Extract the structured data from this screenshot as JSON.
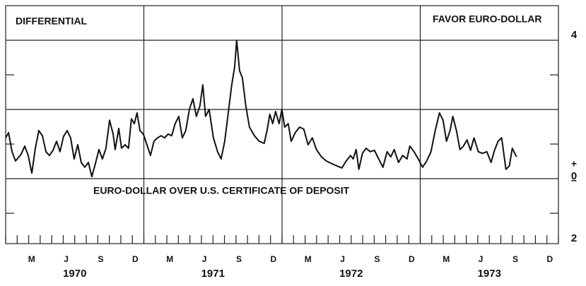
{
  "chart_data": {
    "type": "line",
    "title": "DIFFERENTIAL",
    "annotations": [
      "FAVOR EURO-DOLLAR",
      "EURO-DOLLAR OVER U.S. CERTIFICATE OF DEPOSIT"
    ],
    "zero_signs": [
      "+",
      "−"
    ],
    "xlim": [
      0,
      48
    ],
    "xticks": [
      0,
      1,
      2,
      3,
      4,
      5,
      6,
      7,
      8,
      9,
      10,
      11,
      12,
      13,
      14,
      15,
      16,
      17,
      18,
      19,
      20,
      21,
      22,
      23,
      24,
      25,
      26,
      27,
      28,
      29,
      30,
      31,
      32,
      33,
      34,
      35,
      36,
      37,
      38,
      39,
      40,
      41,
      42,
      43,
      44,
      45,
      46,
      47,
      48
    ],
    "month_labels": [
      {
        "value": 2.5,
        "label": "M"
      },
      {
        "value": 5.5,
        "label": "J"
      },
      {
        "value": 8.5,
        "label": "S"
      },
      {
        "value": 11.5,
        "label": "D"
      },
      {
        "value": 14.5,
        "label": "M"
      },
      {
        "value": 17.5,
        "label": "J"
      },
      {
        "value": 20.5,
        "label": "S"
      },
      {
        "value": 23.5,
        "label": "D"
      },
      {
        "value": 26.5,
        "label": "M"
      },
      {
        "value": 29.5,
        "label": "J"
      },
      {
        "value": 32.5,
        "label": "S"
      },
      {
        "value": 35.5,
        "label": "D"
      },
      {
        "value": 38.5,
        "label": "M"
      },
      {
        "value": 41.5,
        "label": "J"
      },
      {
        "value": 44.5,
        "label": "S"
      },
      {
        "value": 47.5,
        "label": "D"
      }
    ],
    "year_labels": [
      {
        "value": 6,
        "label": "1970"
      },
      {
        "value": 18,
        "label": "1971"
      },
      {
        "value": 30,
        "label": "1972"
      },
      {
        "value": 42,
        "label": "1973"
      }
    ],
    "vertical_grid": [
      12,
      24,
      36
    ],
    "ylim": [
      -2,
      5
    ],
    "yticks": [
      4,
      0,
      {
        "value": -2,
        "label": "2"
      }
    ],
    "grid_values": [
      4,
      2,
      0
    ],
    "minor_yticks": [
      3,
      1,
      -1
    ],
    "grid": true,
    "series": [
      {
        "color": "#111111",
        "x": [
          0,
          0.25,
          0.55,
          0.86,
          1.35,
          1.66,
          1.96,
          2.27,
          2.58,
          2.88,
          3.19,
          3.5,
          3.8,
          4.11,
          4.42,
          4.72,
          5.03,
          5.34,
          5.64,
          5.95,
          6.26,
          6.56,
          6.87,
          7.18,
          7.48,
          7.79,
          8.1,
          8.4,
          8.71,
          9.02,
          9.33,
          9.51,
          9.82,
          10.06,
          10.37,
          10.67,
          10.92,
          11.17,
          11.41,
          11.66,
          11.96,
          12.27,
          12.58,
          12.88,
          13.19,
          13.5,
          13.8,
          14.11,
          14.42,
          14.72,
          15.03,
          15.34,
          15.64,
          15.95,
          16.26,
          16.56,
          16.87,
          17.12,
          17.36,
          17.67,
          18.04,
          18.4,
          18.71,
          19.02,
          19.33,
          19.63,
          19.88,
          20.06,
          20.31,
          20.55,
          20.86,
          21.17,
          21.6,
          22.02,
          22.45,
          22.7,
          22.94,
          23.19,
          23.44,
          23.74,
          23.99,
          24.23,
          24.54,
          24.79,
          25.15,
          25.52,
          25.89,
          26.26,
          26.63,
          26.99,
          27.42,
          27.85,
          28.34,
          28.77,
          29.2,
          29.57,
          29.94,
          30.18,
          30.43,
          30.67,
          30.98,
          31.29,
          31.66,
          32.02,
          32.39,
          32.76,
          33.13,
          33.44,
          33.74,
          34.11,
          34.48,
          34.85,
          35.09,
          35.46,
          35.83,
          36.2,
          36.56,
          36.93,
          37.3,
          37.67,
          37.98,
          38.28,
          38.59,
          38.83,
          39.14,
          39.45,
          39.75,
          40.06,
          40.37,
          40.67,
          41.04,
          41.41,
          41.78,
          42.15,
          42.45,
          42.76,
          43.07,
          43.44,
          43.74,
          43.99,
          44.36
        ],
        "values": [
          1.18,
          1.33,
          0.78,
          0.51,
          0.71,
          0.94,
          0.67,
          0.16,
          0.88,
          1.39,
          1.24,
          0.78,
          0.67,
          0.82,
          1.08,
          0.78,
          1.22,
          1.39,
          1.18,
          0.57,
          0.98,
          0.47,
          0.33,
          0.47,
          0.06,
          0.43,
          0.84,
          0.57,
          0.88,
          1.69,
          1.29,
          0.84,
          1.45,
          0.88,
          0.98,
          0.88,
          1.73,
          1.59,
          1.9,
          1.39,
          1.29,
          0.98,
          0.67,
          1.08,
          1.18,
          1.24,
          1.18,
          1.29,
          1.24,
          1.59,
          1.8,
          1.18,
          1.39,
          2.0,
          2.31,
          1.8,
          2.1,
          2.71,
          1.8,
          2.0,
          1.18,
          0.78,
          0.57,
          1.08,
          1.9,
          2.71,
          3.22,
          4.0,
          3.12,
          2.92,
          2.1,
          1.49,
          1.24,
          1.08,
          1.02,
          1.39,
          1.86,
          1.59,
          1.94,
          1.59,
          2.0,
          1.49,
          1.59,
          1.08,
          1.33,
          1.49,
          1.43,
          0.98,
          1.18,
          0.84,
          0.63,
          0.51,
          0.43,
          0.37,
          0.31,
          0.51,
          0.67,
          0.57,
          0.84,
          0.27,
          0.73,
          0.88,
          0.78,
          0.82,
          0.57,
          0.33,
          0.78,
          0.63,
          0.84,
          0.47,
          0.67,
          0.57,
          0.94,
          0.78,
          0.57,
          0.33,
          0.51,
          0.78,
          1.39,
          1.9,
          1.69,
          1.08,
          1.39,
          1.8,
          1.39,
          0.84,
          0.94,
          1.12,
          0.82,
          1.18,
          0.78,
          0.73,
          0.78,
          0.47,
          0.82,
          1.08,
          1.18,
          0.27,
          0.37,
          0.88,
          0.63
        ]
      }
    ]
  }
}
